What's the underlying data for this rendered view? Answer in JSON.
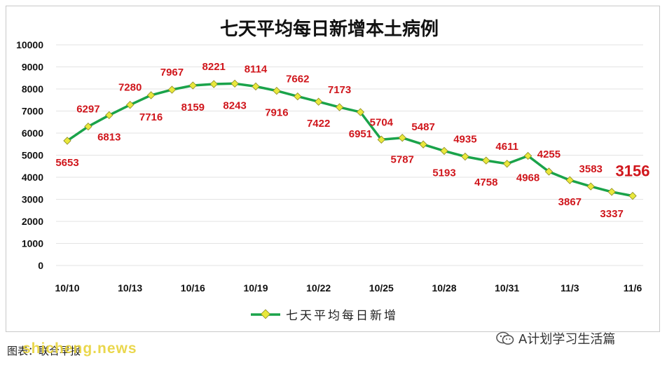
{
  "footer": {
    "source": "图表：联合早报",
    "watermark": "shicheng.news",
    "brand": "A计划学习生活篇",
    "brand_icon": "wechat-icon"
  },
  "colors": {
    "line": "#1aa34a",
    "marker": "#e9e83c",
    "label": "#d0161c",
    "grid": "#e3e3e3"
  },
  "chart_data": {
    "type": "line",
    "title": "七天平均每日新增本土病例",
    "xlabel": "",
    "ylabel": "",
    "ylim": [
      0,
      10000
    ],
    "yticks": [
      0,
      1000,
      2000,
      3000,
      4000,
      5000,
      6000,
      7000,
      8000,
      9000,
      10000
    ],
    "x_tick_labels": [
      "10/10",
      "10/13",
      "10/16",
      "10/19",
      "10/22",
      "10/25",
      "10/28",
      "10/31",
      "11/3",
      "11/6"
    ],
    "x": [
      "10/10",
      "10/11",
      "10/12",
      "10/13",
      "10/14",
      "10/15",
      "10/16",
      "10/17",
      "10/18",
      "10/19",
      "10/20",
      "10/21",
      "10/22",
      "10/23",
      "10/24",
      "10/25",
      "10/26",
      "10/27",
      "10/28",
      "10/29",
      "10/30",
      "10/31",
      "11/1",
      "11/2",
      "11/3",
      "11/4",
      "11/5",
      "11/6"
    ],
    "grid": true,
    "legend_position": "bottom",
    "series": [
      {
        "name": "七天平均每日新增",
        "values": [
          5653,
          6297,
          6813,
          7280,
          7716,
          7967,
          8159,
          8221,
          8243,
          8114,
          7916,
          7662,
          7422,
          7173,
          6951,
          5704,
          5787,
          5487,
          5193,
          4935,
          4758,
          4611,
          4968,
          4255,
          3867,
          3583,
          3337,
          3156
        ]
      }
    ]
  }
}
